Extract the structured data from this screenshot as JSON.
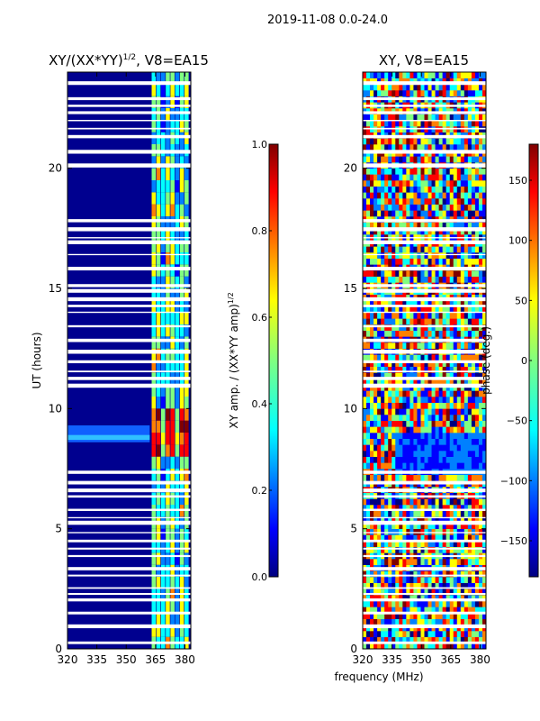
{
  "chart_data": [
    {
      "type": "heatmap",
      "suptitle": "2019-11-08 0.0-24.0",
      "title": "XY/(XX*YY)",
      "title_power": "1/2",
      "title_suffix": ", V8=EA15",
      "ylabel": "UT (hours)",
      "xlabel": "",
      "xticks": [
        320,
        335,
        350,
        365,
        380
      ],
      "yticks": [
        0,
        5,
        10,
        15,
        20
      ],
      "xlim": [
        320,
        383
      ],
      "ylim": [
        0,
        24
      ],
      "colorbar": {
        "label": "XY amp. / (XX*YY amp)",
        "label_power": "1/2",
        "ticks": [
          "0.0",
          "0.2",
          "0.4",
          "0.6",
          "0.8",
          "1.0"
        ],
        "range": [
          0.0,
          1.0
        ]
      }
    },
    {
      "type": "heatmap",
      "title": "XY, V8=EA15",
      "xlabel": "frequency (MHz)",
      "ylabel": "",
      "xticks": [
        320,
        335,
        350,
        365,
        380
      ],
      "yticks": [
        0,
        5,
        10,
        15,
        20
      ],
      "xlim": [
        320,
        383
      ],
      "ylim": [
        0,
        24
      ],
      "colorbar": {
        "label": "phase (deg.)",
        "ticks": [
          "−150",
          "−100",
          "−50",
          "0",
          "50",
          "100",
          "150"
        ],
        "range": [
          -180,
          180
        ]
      }
    }
  ],
  "colors": {
    "jet": [
      "#000080",
      "#0000ff",
      "#0080ff",
      "#00ffff",
      "#80ff80",
      "#ffff00",
      "#ff8000",
      "#ff0000",
      "#800000"
    ]
  }
}
